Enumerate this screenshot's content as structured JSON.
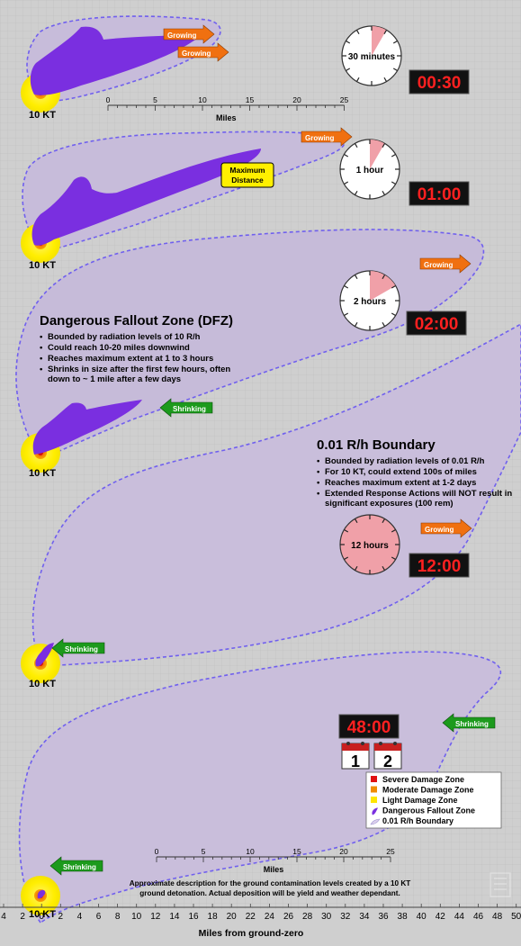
{
  "panels": {
    "p30m": {
      "time_label": "30 minutes",
      "digital": "00:30",
      "yield": "10 KT",
      "badges": [
        "Growing",
        "Growing"
      ],
      "fraction": 0.083
    },
    "p1h": {
      "time_label": "1 hour",
      "digital": "01:00",
      "yield": "10 KT",
      "badges": [
        "Growing"
      ],
      "callout": [
        "Maximum",
        "Distance"
      ],
      "fraction": 0.083
    },
    "p2h": {
      "time_label": "2 hours",
      "digital": "02:00",
      "yield": "10 KT",
      "badges": [
        "Growing",
        "Shrinking"
      ],
      "fraction": 0.167
    },
    "p12h": {
      "time_label": "12 hours",
      "digital": "12:00",
      "yield": "10 KT",
      "badges": [
        "Growing",
        "Shrinking"
      ],
      "fraction": 1.0
    },
    "p48h": {
      "digital": "48:00",
      "yield": "10 KT",
      "badges": [
        "Shrinking",
        "Shrinking"
      ],
      "calendar": [
        "1",
        "2"
      ]
    }
  },
  "miles_scale": {
    "label": "Miles",
    "ticks": [
      "0",
      "5",
      "10",
      "15",
      "20",
      "25"
    ]
  },
  "dfz": {
    "title": "Dangerous Fallout Zone (DFZ)",
    "bullets": [
      "Bounded by radiation levels of 10 R/h",
      "Could reach 10-20 miles downwind",
      "Reaches maximum extent at 1 to 3 hours",
      "Shrinks in size after the first few hours, often down to ~ 1 mile after a few days"
    ]
  },
  "boundary": {
    "title": "0.01 R/h Boundary",
    "bullets": [
      "Bounded by radiation levels of 0.01 R/h",
      "For 10 KT, could extend 100s of miles",
      "Reaches maximum extent at 1-2 days",
      "Extended Response Actions will NOT result in significant exposures (100 rem)"
    ]
  },
  "legend": [
    {
      "label": "Severe Damage Zone",
      "color": "#e01010"
    },
    {
      "label": "Moderate Damage Zone",
      "color": "#f08c00"
    },
    {
      "label": "Light Damage Zone",
      "color": "#ffe600"
    },
    {
      "label": "Dangerous Fallout Zone",
      "color": "#7a2fe0"
    },
    {
      "label": "0.01 R/h Boundary",
      "color": "#dcd0ec"
    }
  ],
  "caption": [
    "Approximate description for the ground contamination levels created by a 10 KT",
    "ground detonation.  Actual deposition will be yield and weather dependant."
  ],
  "bottom_axis": {
    "title": "Miles from ground-zero",
    "ticks": [
      "4",
      "2",
      "0",
      "2",
      "4",
      "6",
      "8",
      "10",
      "12",
      "14",
      "16",
      "18",
      "20",
      "22",
      "24",
      "26",
      "28",
      "30",
      "32",
      "34",
      "36",
      "38",
      "40",
      "42",
      "44",
      "46",
      "48",
      "50"
    ]
  },
  "colors": {
    "dfz": "#7a2fe0",
    "boundary_fill": "#c9bedb",
    "boundary_stroke": "#7060ee",
    "growing": "#f07010",
    "shrinking": "#1c9a1c",
    "digital": "#ff2020",
    "clock_fill": "#f0a0a8",
    "yellow": "#fff000"
  }
}
